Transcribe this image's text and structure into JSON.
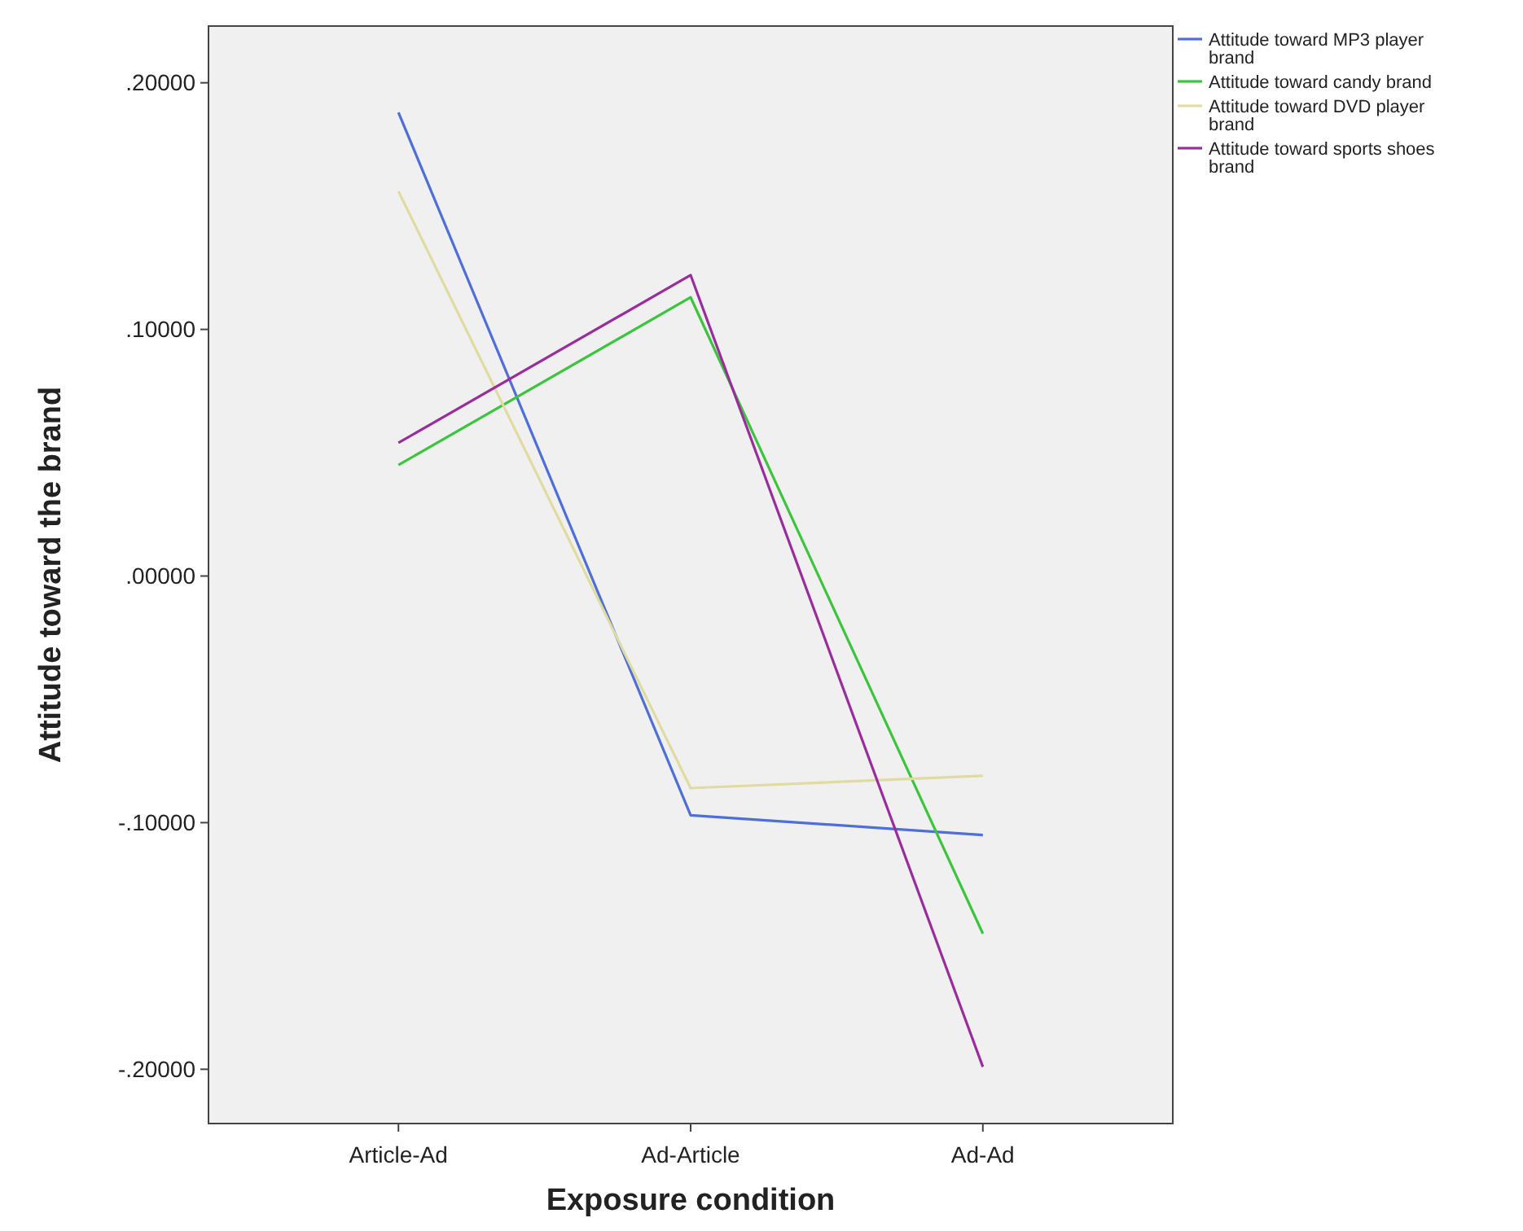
{
  "chart_data": {
    "type": "line",
    "xlabel": "Exposure condition",
    "ylabel": "Attitude toward the brand",
    "categories": [
      "Article-Ad",
      "Ad-Article",
      "Ad-Ad"
    ],
    "ylim": [
      -0.222,
      0.223
    ],
    "yticks": [
      {
        "value": -0.2,
        "label": "-.20000"
      },
      {
        "value": -0.1,
        "label": "-.10000"
      },
      {
        "value": 0,
        "label": ".00000"
      },
      {
        "value": 0.1,
        "label": ".10000"
      },
      {
        "value": 0.2,
        "label": ".20000"
      }
    ],
    "series": [
      {
        "name": "Attitude toward MP3 player brand",
        "color": "#4e6ed8",
        "values": [
          0.188,
          -0.097,
          -0.105
        ]
      },
      {
        "name": "Attitude toward candy brand",
        "color": "#3cc43c",
        "values": [
          0.045,
          0.113,
          -0.145
        ]
      },
      {
        "name": "Attitude toward DVD player brand",
        "color": "#e0dba0",
        "values": [
          0.156,
          -0.086,
          -0.081
        ]
      },
      {
        "name": "Attitude toward sports shoes brand",
        "color": "#9a2d9c",
        "values": [
          0.054,
          0.122,
          -0.199
        ]
      }
    ],
    "grid": false,
    "legend": "right",
    "marker": "none",
    "line_style": "solid"
  }
}
